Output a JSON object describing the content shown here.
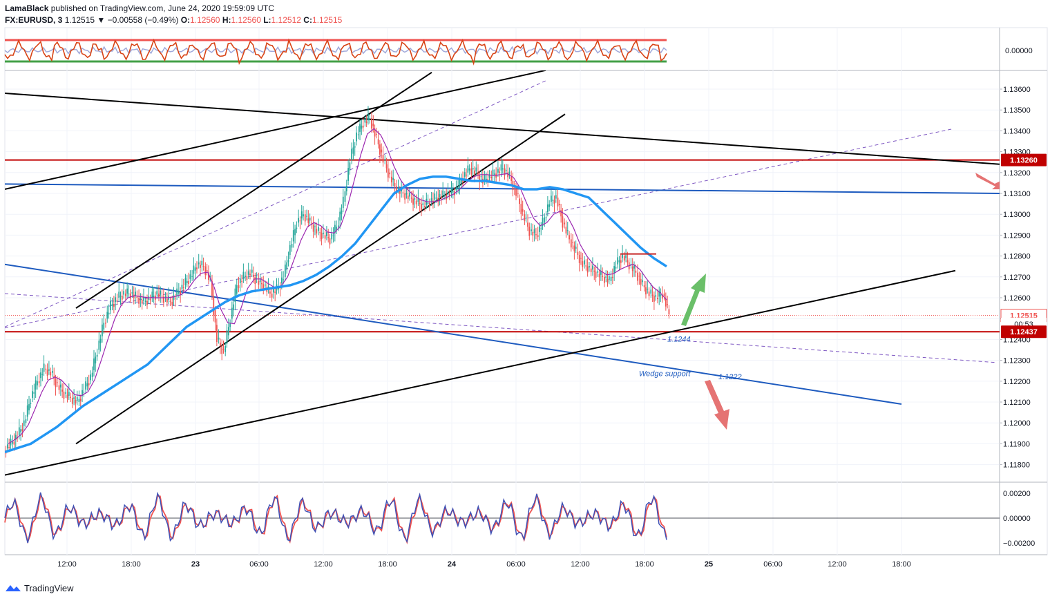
{
  "header": {
    "author": "LamaBlack",
    "published": "published on TradingView.com, June 24, 2020 19:59:09 UTC",
    "symbol": "FX:EURUSD, 3",
    "last": "1.12515",
    "change": "▼ −0.00558 (−0.49%)",
    "o_label": "O:",
    "o_value": "1.12560",
    "h_label": "H:",
    "h_value": "1.12560",
    "l_label": "L:",
    "l_value": "1.12512",
    "c_label": "C:",
    "c_value": "1.12515"
  },
  "footer": {
    "brand": "TradingView"
  },
  "colors": {
    "up": "#26a69a",
    "down": "#ef5350",
    "ma_blue": "#2196f3",
    "ma_purple": "#9c27b0",
    "resistance": "#c00000",
    "trend_black": "#000000",
    "wedge_blue": "#1e5bbf",
    "dashed": "#7e57c2",
    "arrow_green": "#6abf69",
    "arrow_red": "#e57373"
  },
  "chart_data": {
    "type": "candlestick",
    "instrument": "FX:EURUSD",
    "timeframe": "3",
    "x_labels": [
      "12:00",
      "18:00",
      "23",
      "06:00",
      "12:00",
      "18:00",
      "24",
      "06:00",
      "12:00",
      "18:00",
      "25",
      "06:00",
      "12:00",
      "18:00"
    ],
    "y_ticks": [
      "1.13600",
      "1.13500",
      "1.13400",
      "1.13300",
      "1.13200",
      "1.13100",
      "1.13000",
      "1.12900",
      "1.12800",
      "1.12700",
      "1.12600",
      "1.12500",
      "1.12400",
      "1.12300",
      "1.12200",
      "1.12100",
      "1.12000",
      "1.11900",
      "1.11800"
    ],
    "price_labels": {
      "resistance": "1.13260",
      "last_price": "1.12515",
      "countdown": "00:53",
      "support": "1.12437"
    },
    "annotations": {
      "support_level": "1.1244",
      "wedge_support": "Wedge support",
      "wedge_level": "1.1222"
    },
    "close_series": [
      1.119,
      1.1194,
      1.12,
      1.1212,
      1.122,
      1.1226,
      1.1224,
      1.1218,
      1.1214,
      1.1212,
      1.121,
      1.1216,
      1.1222,
      1.1235,
      1.1248,
      1.1256,
      1.126,
      1.1262,
      1.1262,
      1.126,
      1.1258,
      1.126,
      1.1262,
      1.126,
      1.1258,
      1.1262,
      1.1266,
      1.127,
      1.1276,
      1.1275,
      1.1268,
      1.124,
      1.1234,
      1.125,
      1.1266,
      1.127,
      1.1272,
      1.1268,
      1.1266,
      1.1262,
      1.1264,
      1.127,
      1.1284,
      1.1296,
      1.13,
      1.1296,
      1.1292,
      1.129,
      1.1288,
      1.1294,
      1.1306,
      1.1326,
      1.1338,
      1.1344,
      1.1346,
      1.1336,
      1.1326,
      1.1318,
      1.1312,
      1.131,
      1.1308,
      1.1306,
      1.1304,
      1.1306,
      1.1308,
      1.1309,
      1.131,
      1.1312,
      1.1318,
      1.1322,
      1.132,
      1.1316,
      1.1318,
      1.132,
      1.1322,
      1.1318,
      1.131,
      1.13,
      1.1292,
      1.129,
      1.1296,
      1.1306,
      1.1308,
      1.1296,
      1.1288,
      1.1282,
      1.1276,
      1.1274,
      1.1272,
      1.127,
      1.1268,
      1.1276,
      1.128,
      1.1276,
      1.1272,
      1.1266,
      1.1262,
      1.126,
      1.1262,
      1.1252
    ],
    "blue_ma": [
      1.1186,
      1.1188,
      1.119,
      1.1194,
      1.1198,
      1.1203,
      1.1208,
      1.1212,
      1.1216,
      1.122,
      1.1224,
      1.1228,
      1.1234,
      1.124,
      1.1246,
      1.125,
      1.1254,
      1.1258,
      1.1261,
      1.1263,
      1.1264,
      1.1265,
      1.1266,
      1.1268,
      1.1271,
      1.1275,
      1.128,
      1.1286,
      1.1294,
      1.1302,
      1.131,
      1.1314,
      1.1317,
      1.1318,
      1.1318,
      1.1317,
      1.1316,
      1.1316,
      1.1315,
      1.1314,
      1.1312,
      1.1312,
      1.1313,
      1.1312,
      1.131,
      1.1308,
      1.1302,
      1.1296,
      1.129,
      1.1284,
      1.1279,
      1.1275
    ],
    "rsi_yticks": [
      "0.00000"
    ],
    "osc_yticks": [
      "0.00200",
      "0.00000",
      "−0.00200"
    ]
  }
}
